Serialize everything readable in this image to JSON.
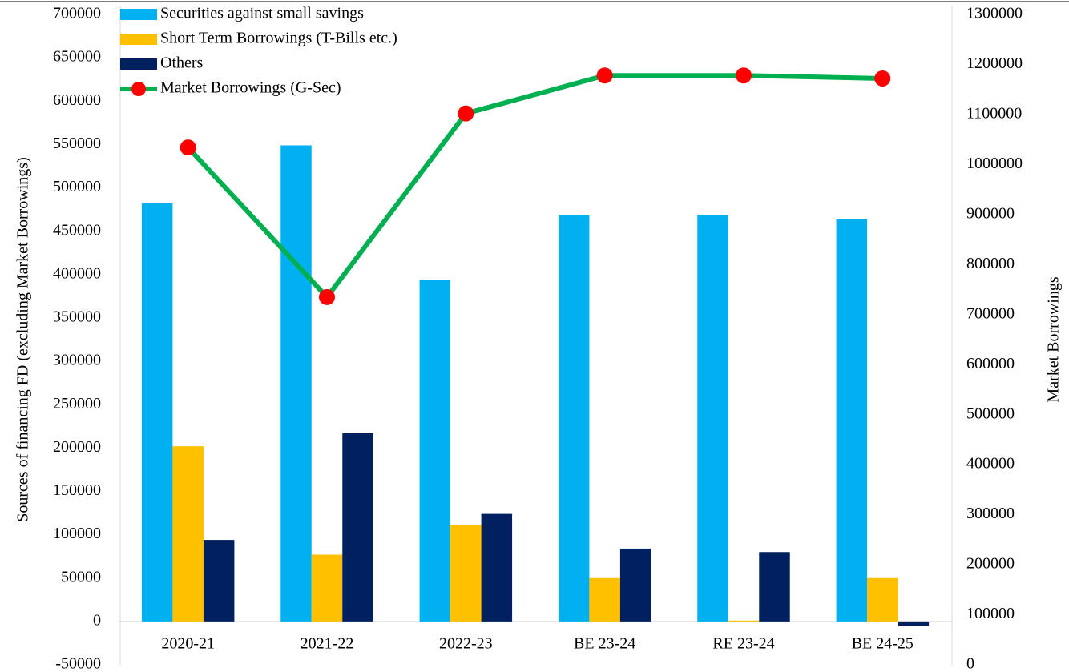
{
  "chart_data": {
    "type": "bar",
    "ylabel": "Sources of  financing FD (excluding Market Borrowings)",
    "y2label": "Market Borrowings",
    "categories": [
      "2020-21",
      "2021-22",
      "2022-23",
      "BE 23-24",
      "RE 23-24",
      "BE 24-25"
    ],
    "series": [
      {
        "name": "Securities against small savings",
        "color": "#00b0f0",
        "values": [
          482000,
          549000,
          394000,
          469000,
          469000,
          464000
        ]
      },
      {
        "name": "Short Term Borrowings (T-Bills etc.)",
        "color": "#ffc000",
        "values": [
          202000,
          77000,
          111000,
          50000,
          1000,
          50000
        ]
      },
      {
        "name": "Others",
        "color": "#002060",
        "values": [
          94000,
          217000,
          124000,
          84000,
          80000,
          -5000
        ]
      },
      {
        "name": "Market Borrowings (G-Sec)",
        "color": "#00b050",
        "marker_color": "#ff0000",
        "type": "line",
        "axis": "y2",
        "values": [
          1034000,
          735000,
          1102000,
          1178000,
          1178000,
          1172000
        ]
      }
    ],
    "ylim": [
      -50000,
      700000
    ],
    "yticks": [
      -50000,
      0,
      50000,
      100000,
      150000,
      200000,
      250000,
      300000,
      350000,
      400000,
      450000,
      500000,
      550000,
      600000,
      650000,
      700000
    ],
    "y2lim": [
      0,
      1300000
    ],
    "y2ticks": [
      0,
      100000,
      200000,
      300000,
      400000,
      500000,
      600000,
      700000,
      800000,
      900000,
      1000000,
      1100000,
      1200000,
      1300000
    ],
    "legend": "top-left"
  }
}
